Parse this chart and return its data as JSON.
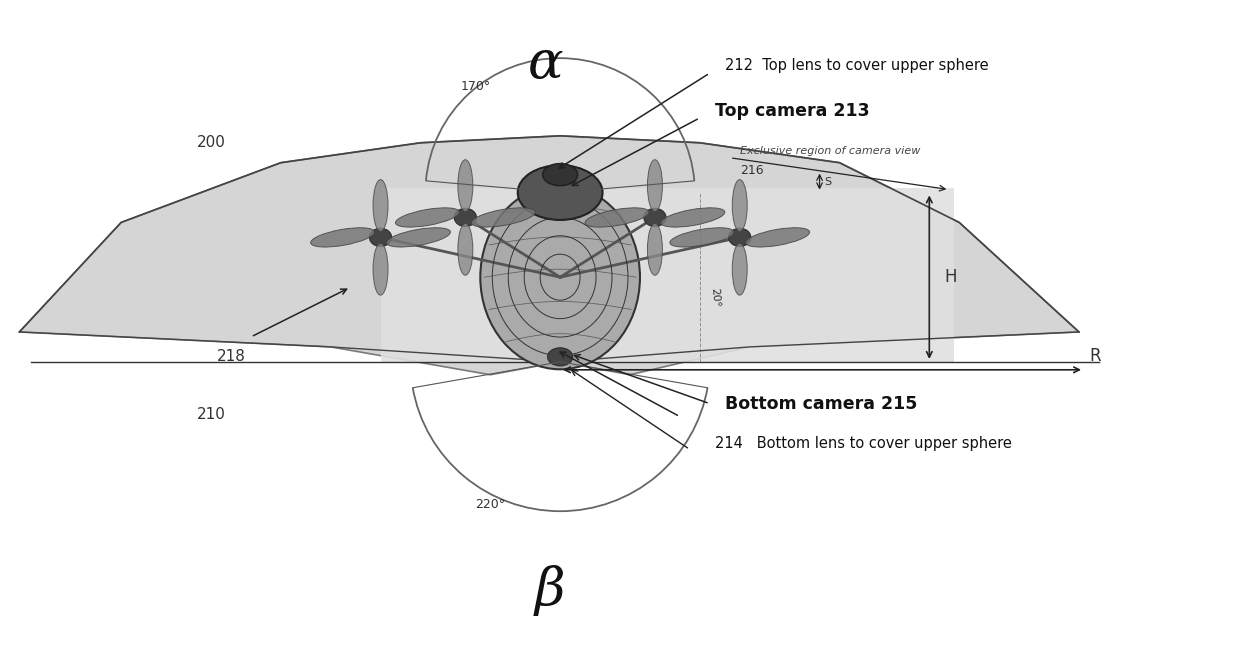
{
  "bg_color": "#ffffff",
  "alpha_label": "α",
  "beta_label": "β",
  "top_angle_label": "170°",
  "bottom_angle_label": "220°",
  "angle_20_label": "20°",
  "label_200": "200",
  "label_210": "210",
  "label_212": "212",
  "label_213": "Top camera 213",
  "label_214": "214",
  "label_215": "Bottom camera 215",
  "label_216": "216",
  "label_218": "218",
  "label_top_lens": "Top lens to cover upper sphere",
  "label_bottom_lens": "Bottom lens to cover upper sphere",
  "label_exclusive": "Exclusive region of camera view",
  "label_H": "H",
  "label_R": "R",
  "label_S": "S",
  "fig_width": 12.4,
  "fig_height": 6.47
}
